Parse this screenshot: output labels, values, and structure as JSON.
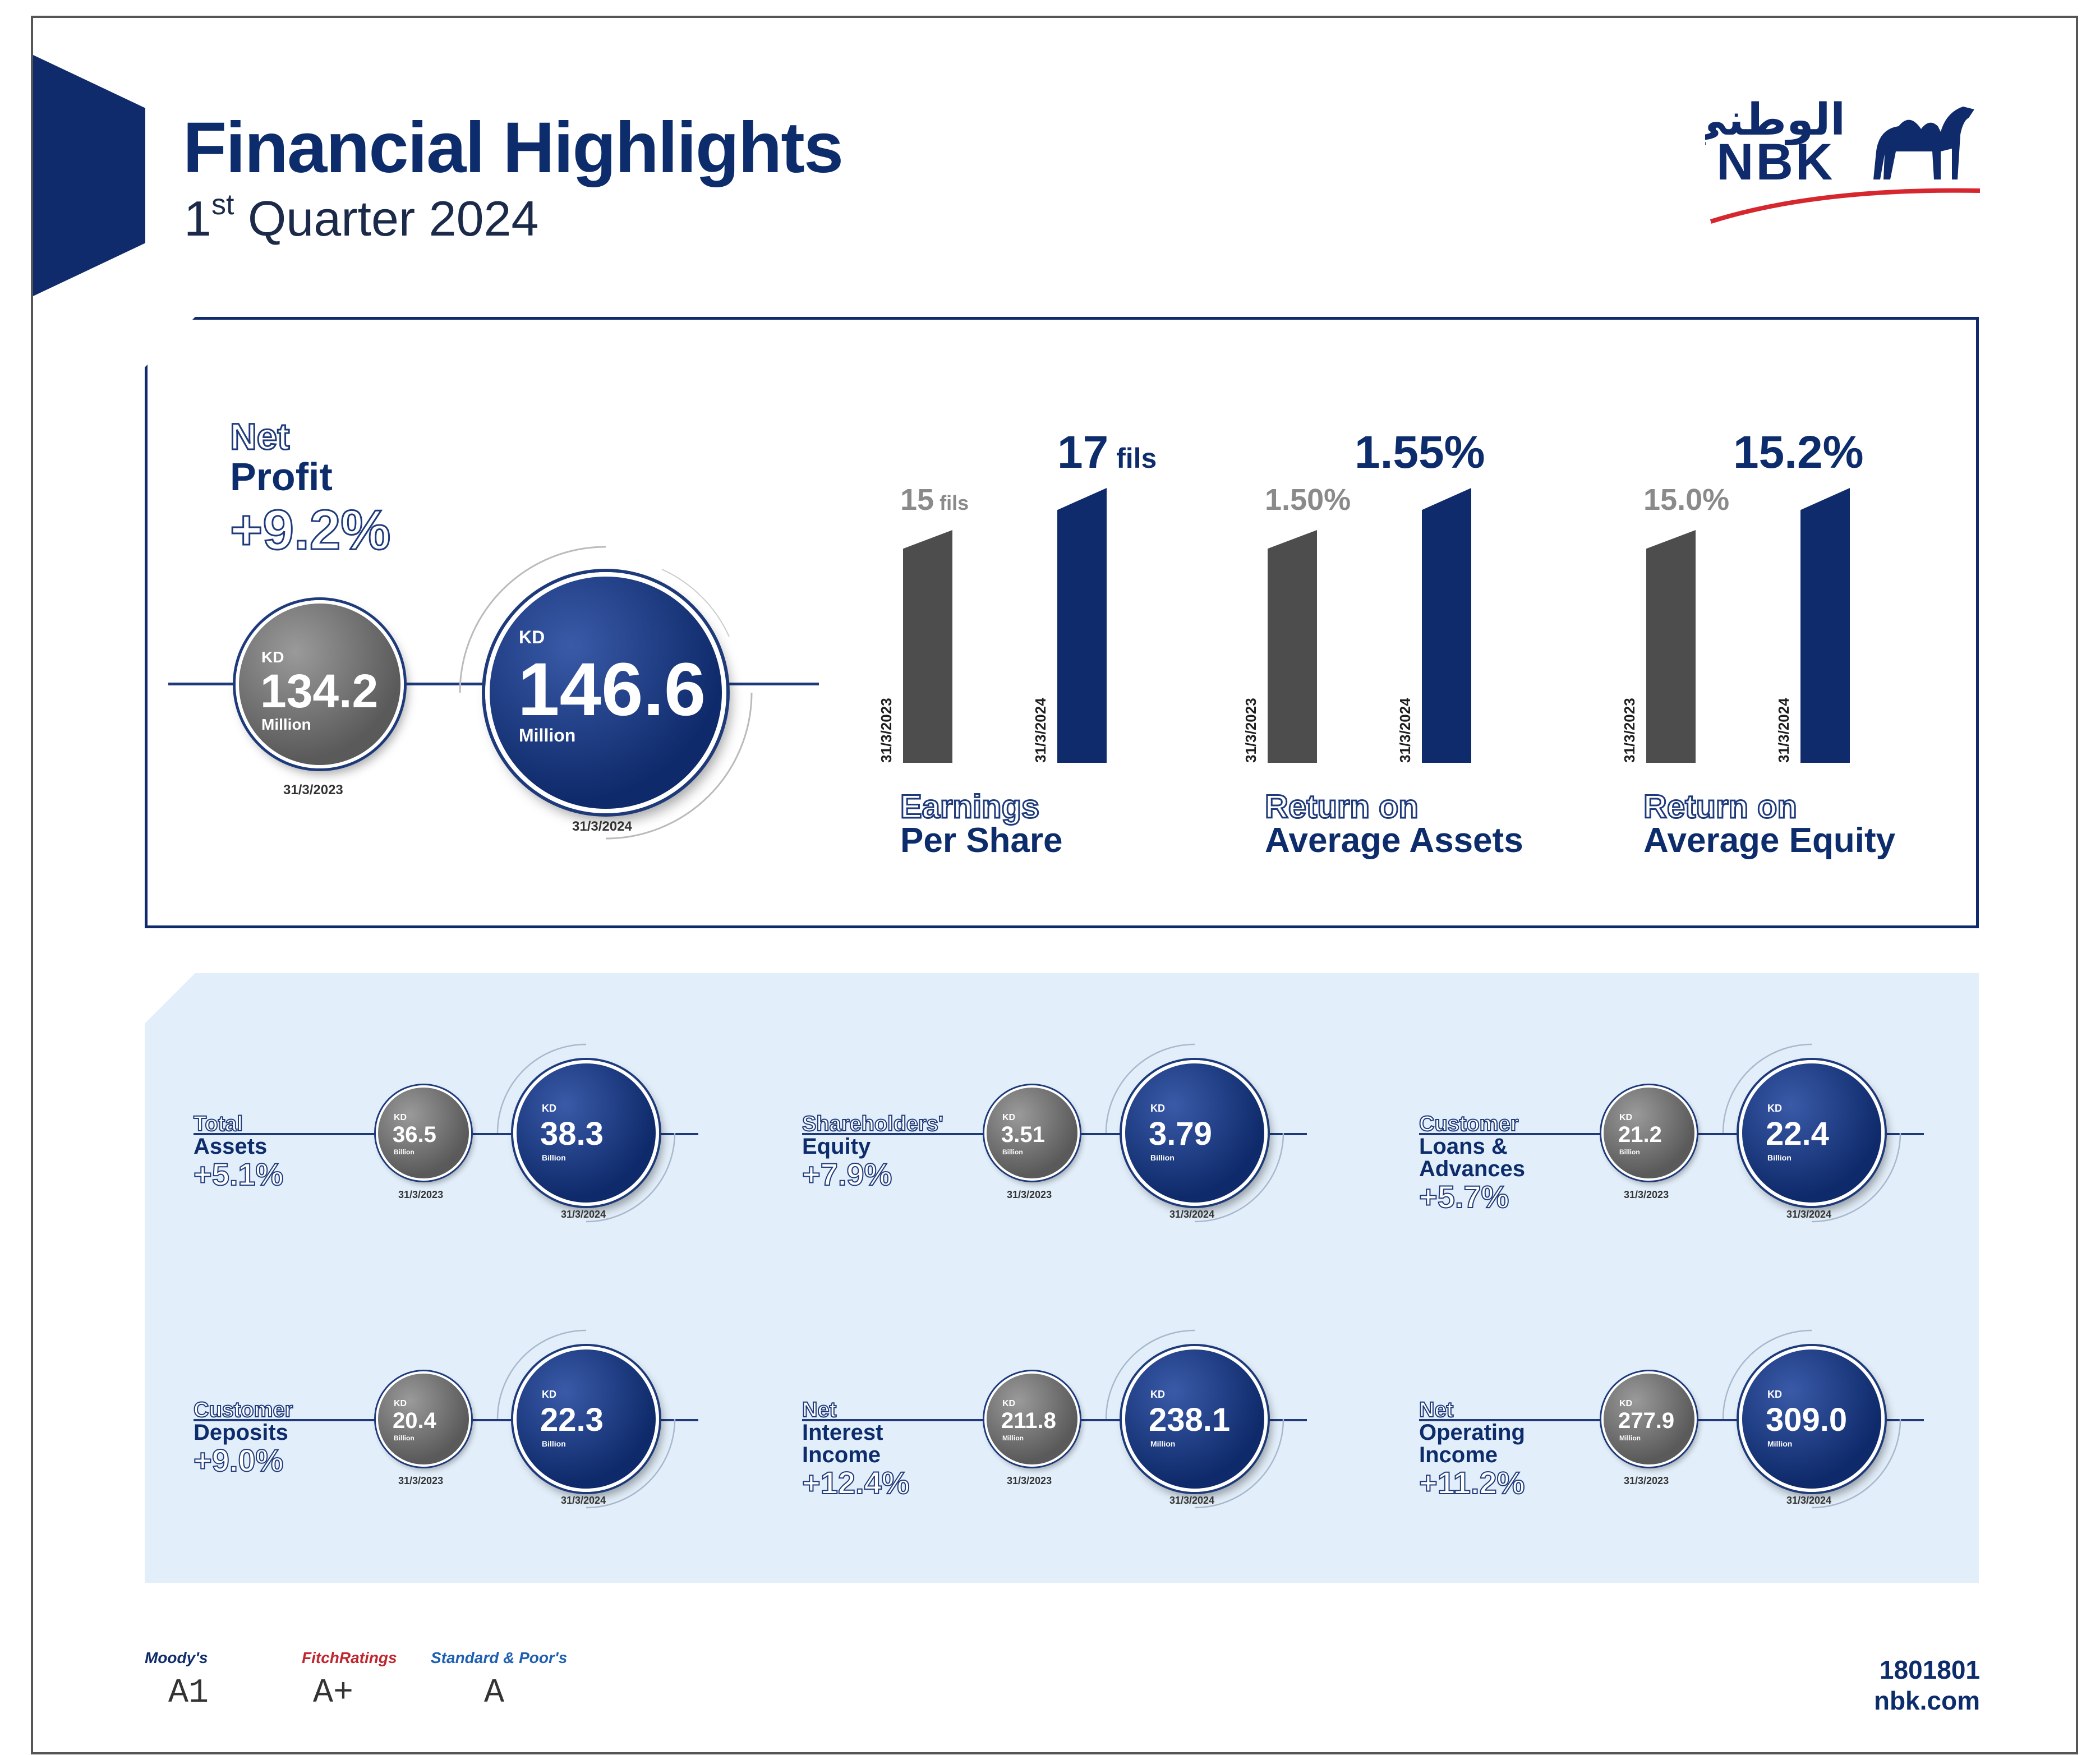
{
  "header": {
    "title": "Financial Highlights",
    "subtitle_prefix": "1",
    "subtitle_sup": "st",
    "subtitle_rest": " Quarter 2024"
  },
  "logo": {
    "arabic": "الوطني",
    "latin": "NBK",
    "icon": "camel-icon",
    "colors": {
      "blue": "#0f2b6b",
      "red": "#d6262e"
    }
  },
  "net_profit": {
    "label_line1": "Net",
    "label_line2": "Profit",
    "change": "+9.2%",
    "prev": {
      "currency": "KD",
      "value": "134.2",
      "unit": "Million",
      "date": "31/3/2023"
    },
    "curr": {
      "currency": "KD",
      "value": "146.6",
      "unit": "Million",
      "date": "31/3/2024"
    }
  },
  "bar_metrics": [
    {
      "label_line1": "Earnings",
      "label_line2": "Per Share",
      "prev": {
        "value": "15",
        "unit": "fils",
        "date": "31/3/2023"
      },
      "curr": {
        "value": "17",
        "unit": "fils",
        "date": "31/3/2024"
      }
    },
    {
      "label_line1": "Return on",
      "label_line2": "Average Assets",
      "prev": {
        "value": "1.50%",
        "unit": "",
        "date": "31/3/2023"
      },
      "curr": {
        "value": "1.55%",
        "unit": "",
        "date": "31/3/2024"
      }
    },
    {
      "label_line1": "Return on",
      "label_line2": "Average Equity",
      "prev": {
        "value": "15.0%",
        "unit": "",
        "date": "31/3/2023"
      },
      "curr": {
        "value": "15.2%",
        "unit": "",
        "date": "31/3/2024"
      }
    }
  ],
  "metrics": [
    {
      "label_outline": "Total",
      "label_solid": "Assets",
      "change": "+5.1%",
      "prev": {
        "currency": "KD",
        "value": "36.5",
        "unit": "Billion",
        "date": "31/3/2023"
      },
      "curr": {
        "currency": "KD",
        "value": "38.3",
        "unit": "Billion",
        "date": "31/3/2024"
      }
    },
    {
      "label_outline": "Shareholders'",
      "label_solid": "Equity",
      "change": "+7.9%",
      "prev": {
        "currency": "KD",
        "value": "3.51",
        "unit": "Billion",
        "date": "31/3/2023"
      },
      "curr": {
        "currency": "KD",
        "value": "3.79",
        "unit": "Billion",
        "date": "31/3/2024"
      }
    },
    {
      "label_outline": "Customer",
      "label_solid": "Loans &\nAdvances",
      "change": "+5.7%",
      "prev": {
        "currency": "KD",
        "value": "21.2",
        "unit": "Billion",
        "date": "31/3/2023"
      },
      "curr": {
        "currency": "KD",
        "value": "22.4",
        "unit": "Billion",
        "date": "31/3/2024"
      }
    },
    {
      "label_outline": "Customer",
      "label_solid": "Deposits",
      "change": "+9.0%",
      "prev": {
        "currency": "KD",
        "value": "20.4",
        "unit": "Billion",
        "date": "31/3/2023"
      },
      "curr": {
        "currency": "KD",
        "value": "22.3",
        "unit": "Billion",
        "date": "31/3/2024"
      }
    },
    {
      "label_outline": "Net",
      "label_solid": "Interest\nIncome",
      "change": "+12.4%",
      "prev": {
        "currency": "KD",
        "value": "211.8",
        "unit": "Million",
        "date": "31/3/2023"
      },
      "curr": {
        "currency": "KD",
        "value": "238.1",
        "unit": "Million",
        "date": "31/3/2024"
      }
    },
    {
      "label_outline": "Net",
      "label_solid": "Operating\nIncome",
      "change": "+11.2%",
      "prev": {
        "currency": "KD",
        "value": "277.9",
        "unit": "Million",
        "date": "31/3/2023"
      },
      "curr": {
        "currency": "KD",
        "value": "309.0",
        "unit": "Million",
        "date": "31/3/2024"
      }
    }
  ],
  "ratings": [
    {
      "agency": "Moody's",
      "rating": "A1",
      "color": "#0f2b6b"
    },
    {
      "agency": "FitchRatings",
      "rating": "A+",
      "color": "#c0262e"
    },
    {
      "agency": "Standard & Poor's",
      "rating": "A",
      "color": "#1f5fb0"
    }
  ],
  "contact": {
    "phone": "1801801",
    "website": "nbk.com"
  }
}
